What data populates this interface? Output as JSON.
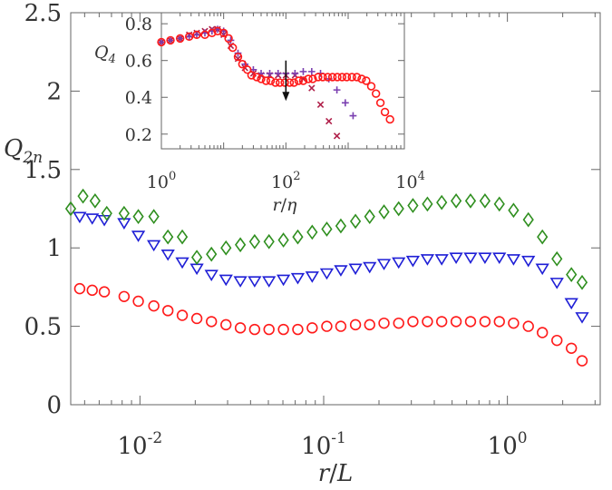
{
  "colors": {
    "axis": "#666666",
    "text": "#333333",
    "red": "#ff1a1a",
    "blue": "#1f1fd6",
    "green": "#2f8f1f",
    "purple": "#7a3fb0",
    "crimson": "#b0204a",
    "arrow": "#111111"
  },
  "chart_data": [
    {
      "type": "scatter",
      "xscale": "log",
      "xlim": [
        0.0042,
        3.2
      ],
      "ylim": [
        0,
        2.5
      ],
      "xlabel": "r/L",
      "ylabel": "Q2n",
      "ylabel_base": "Q",
      "ylabel_sub": "2n",
      "yticks": [
        0,
        0.5,
        1,
        1.5,
        2,
        2.5
      ],
      "ytick_labels": [
        "0",
        "0.5",
        "1",
        "1.5",
        "2",
        "2.5"
      ],
      "xticks_major": [
        0.01,
        0.1,
        1
      ],
      "xtick_bases": [
        "10",
        "10",
        "10"
      ],
      "xtick_exps": [
        "-2",
        "-1",
        "0"
      ],
      "grid": false,
      "series": [
        {
          "marker": "circle",
          "color": "red",
          "x": [
            0.0047,
            0.0055,
            0.0064,
            0.0082,
            0.0098,
            0.0119,
            0.0142,
            0.017,
            0.0204,
            0.0245,
            0.0294,
            0.0352,
            0.0421,
            0.0504,
            0.0604,
            0.0723,
            0.0866,
            0.104,
            0.124,
            0.149,
            0.178,
            0.213,
            0.256,
            0.306,
            0.367,
            0.439,
            0.526,
            0.63,
            0.755,
            0.904,
            1.08,
            1.3,
            1.55,
            1.86,
            2.23,
            2.55
          ],
          "y": [
            0.74,
            0.73,
            0.72,
            0.69,
            0.66,
            0.63,
            0.6,
            0.57,
            0.55,
            0.53,
            0.51,
            0.49,
            0.48,
            0.48,
            0.48,
            0.48,
            0.49,
            0.5,
            0.5,
            0.51,
            0.51,
            0.52,
            0.52,
            0.53,
            0.53,
            0.53,
            0.53,
            0.53,
            0.53,
            0.53,
            0.52,
            0.5,
            0.46,
            0.41,
            0.36,
            0.28
          ]
        },
        {
          "marker": "triangle-down",
          "color": "blue",
          "x": [
            0.0047,
            0.0055,
            0.0064,
            0.0082,
            0.0098,
            0.0119,
            0.0142,
            0.017,
            0.0204,
            0.0245,
            0.0294,
            0.0352,
            0.0421,
            0.0504,
            0.0604,
            0.0723,
            0.0866,
            0.104,
            0.124,
            0.149,
            0.178,
            0.213,
            0.256,
            0.306,
            0.367,
            0.439,
            0.526,
            0.63,
            0.755,
            0.904,
            1.08,
            1.3,
            1.55,
            1.86,
            2.23,
            2.55
          ],
          "y": [
            1.2,
            1.19,
            1.18,
            1.16,
            1.08,
            1.02,
            0.96,
            0.91,
            0.87,
            0.83,
            0.8,
            0.79,
            0.79,
            0.79,
            0.8,
            0.81,
            0.82,
            0.84,
            0.86,
            0.87,
            0.88,
            0.9,
            0.91,
            0.92,
            0.93,
            0.93,
            0.94,
            0.94,
            0.94,
            0.94,
            0.93,
            0.92,
            0.87,
            0.78,
            0.65,
            0.56
          ]
        },
        {
          "marker": "diamond",
          "color": "green",
          "x": [
            0.0042,
            0.0049,
            0.0057,
            0.0066,
            0.0082,
            0.0098,
            0.0119,
            0.0142,
            0.017,
            0.0204,
            0.0245,
            0.0294,
            0.0352,
            0.0421,
            0.0504,
            0.0604,
            0.0723,
            0.0866,
            0.104,
            0.124,
            0.149,
            0.178,
            0.213,
            0.256,
            0.306,
            0.367,
            0.439,
            0.526,
            0.63,
            0.755,
            0.904,
            1.08,
            1.3,
            1.55,
            1.86,
            2.23,
            2.55
          ],
          "y": [
            1.25,
            1.33,
            1.3,
            1.22,
            1.22,
            1.2,
            1.2,
            1.07,
            1.07,
            0.94,
            0.96,
            1.0,
            1.02,
            1.04,
            1.04,
            1.05,
            1.07,
            1.1,
            1.12,
            1.14,
            1.17,
            1.2,
            1.23,
            1.25,
            1.27,
            1.28,
            1.29,
            1.3,
            1.3,
            1.3,
            1.28,
            1.24,
            1.18,
            1.07,
            0.93,
            0.83,
            0.78
          ]
        }
      ]
    },
    {
      "type": "scatter",
      "xscale": "log",
      "xlim": [
        1,
        8000
      ],
      "ylim": [
        0.12,
        0.86
      ],
      "xlabel": "r/η",
      "ylabel": "Q4",
      "ylabel_base": "Q",
      "ylabel_sub": "4",
      "yticks": [
        0.2,
        0.4,
        0.6,
        0.8
      ],
      "ytick_labels": [
        "0.2",
        "0.4",
        "0.6",
        "0.8"
      ],
      "xticks_major": [
        1,
        100,
        10000
      ],
      "xtick_bases": [
        "10",
        "10",
        "10"
      ],
      "xtick_exps": [
        "0",
        "2",
        "4"
      ],
      "annotation": "arrow pointing down at x≈100",
      "grid": false,
      "series": [
        {
          "marker": "x",
          "color": "crimson",
          "x": [
            1.0,
            1.4,
            2.0,
            2.8,
            3.7,
            5.0,
            6.5,
            8.0,
            10,
            13,
            17,
            22,
            30,
            40,
            55,
            75,
            100,
            140,
            190,
            260,
            360,
            490,
            660
          ],
          "y": [
            0.7,
            0.71,
            0.72,
            0.74,
            0.75,
            0.76,
            0.77,
            0.77,
            0.74,
            0.68,
            0.61,
            0.56,
            0.53,
            0.52,
            0.52,
            0.52,
            0.52,
            0.52,
            0.5,
            0.45,
            0.36,
            0.27,
            0.19
          ]
        },
        {
          "marker": "plus",
          "color": "purple",
          "x": [
            1.0,
            1.4,
            2.0,
            2.8,
            3.7,
            5.0,
            6.5,
            8.0,
            10,
            13,
            17,
            22,
            30,
            40,
            55,
            75,
            100,
            140,
            190,
            260,
            360,
            490,
            660,
            900,
            1200
          ],
          "y": [
            0.7,
            0.71,
            0.72,
            0.73,
            0.74,
            0.75,
            0.76,
            0.77,
            0.76,
            0.71,
            0.64,
            0.58,
            0.55,
            0.53,
            0.53,
            0.53,
            0.53,
            0.53,
            0.54,
            0.54,
            0.53,
            0.5,
            0.44,
            0.37,
            0.3
          ]
        },
        {
          "marker": "circle",
          "color": "red",
          "x": [
            1.0,
            1.4,
            2.0,
            2.8,
            3.7,
            5.0,
            6.5,
            8.0,
            10,
            12,
            14,
            17,
            20,
            24,
            28,
            34,
            40,
            48,
            57,
            68,
            80,
            96,
            115,
            135,
            160,
            190,
            230,
            270,
            330,
            390,
            470,
            560,
            670,
            800,
            950,
            1150,
            1380,
            1650,
            1950,
            2350,
            2800,
            3300,
            3900,
            4700
          ],
          "y": [
            0.7,
            0.71,
            0.72,
            0.73,
            0.74,
            0.74,
            0.75,
            0.76,
            0.75,
            0.72,
            0.67,
            0.62,
            0.58,
            0.55,
            0.52,
            0.51,
            0.5,
            0.49,
            0.49,
            0.48,
            0.48,
            0.48,
            0.48,
            0.48,
            0.49,
            0.49,
            0.5,
            0.5,
            0.51,
            0.51,
            0.51,
            0.51,
            0.51,
            0.51,
            0.51,
            0.51,
            0.51,
            0.5,
            0.49,
            0.46,
            0.42,
            0.37,
            0.32,
            0.28
          ]
        }
      ]
    }
  ]
}
